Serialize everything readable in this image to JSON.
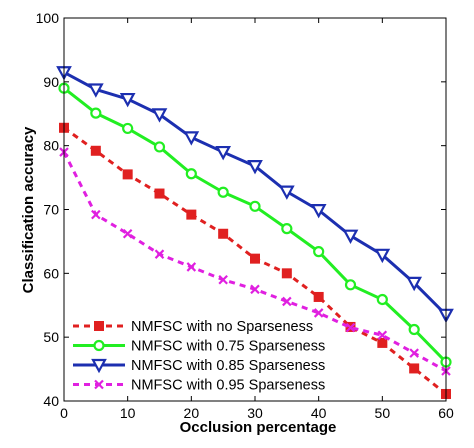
{
  "chart_data": {
    "type": "line",
    "xlabel": "Occlusion percentage",
    "ylabel": "Classification accuracy",
    "xlim": [
      0,
      60
    ],
    "ylim": [
      40,
      100
    ],
    "xticks": [
      0,
      10,
      20,
      30,
      40,
      50,
      60
    ],
    "yticks": [
      40,
      50,
      60,
      70,
      80,
      90,
      100
    ],
    "grid": false,
    "legend_position": "bottom-left",
    "x": [
      0,
      5,
      10,
      15,
      20,
      25,
      30,
      35,
      40,
      45,
      50,
      55,
      60
    ],
    "series": [
      {
        "name": "NMFSC with no Sparseness",
        "color": "#e02020",
        "line_style": "dashed",
        "marker": "square",
        "values": [
          82.8,
          79.2,
          75.5,
          72.5,
          69.2,
          66.2,
          62.3,
          60.0,
          56.3,
          51.6,
          49.1,
          45.1,
          41.1
        ]
      },
      {
        "name": "NMFSC with 0.75 Sparseness",
        "color": "#22ee22",
        "line_style": "solid",
        "marker": "circle",
        "values": [
          89.0,
          85.1,
          82.7,
          79.8,
          75.6,
          72.7,
          70.5,
          67.0,
          63.4,
          58.2,
          55.9,
          51.2,
          46.1
        ]
      },
      {
        "name": "NMFSC with 0.85 Sparseness",
        "color": "#1c2fb0",
        "line_style": "solid",
        "marker": "triangle-down",
        "values": [
          91.5,
          88.8,
          87.3,
          84.9,
          81.3,
          79.0,
          76.8,
          72.8,
          69.9,
          65.9,
          62.9,
          58.5,
          53.5
        ]
      },
      {
        "name": "NMFSC with 0.95 Sparseness",
        "color": "#e020e0",
        "line_style": "dashed",
        "marker": "x",
        "values": [
          79.0,
          69.2,
          66.2,
          63.0,
          61.0,
          59.0,
          57.5,
          55.6,
          53.8,
          51.5,
          50.3,
          47.5,
          44.7
        ]
      }
    ]
  }
}
